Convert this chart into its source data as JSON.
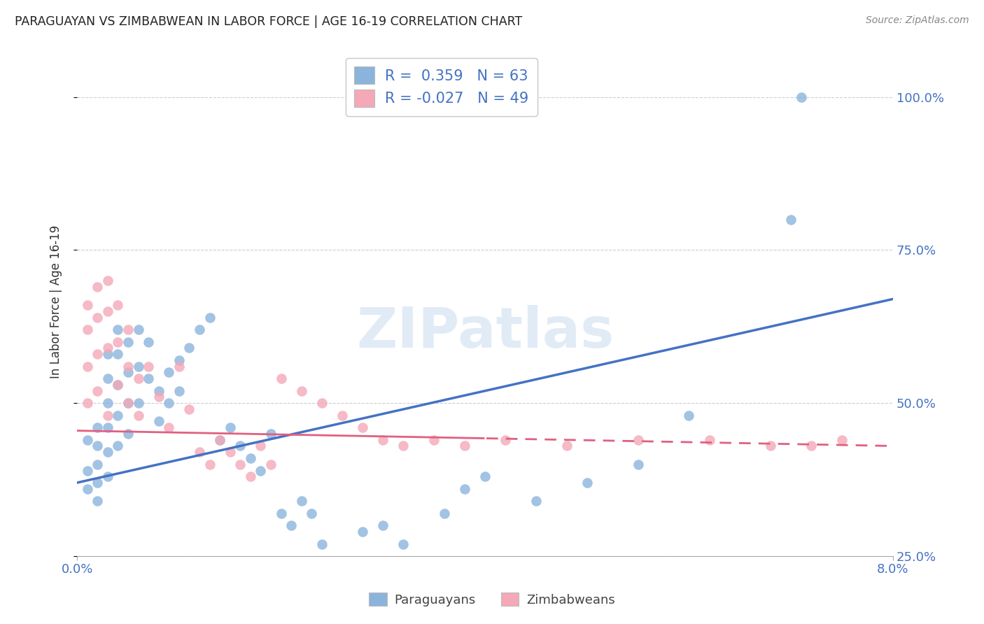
{
  "title": "PARAGUAYAN VS ZIMBABWEAN IN LABOR FORCE | AGE 16-19 CORRELATION CHART",
  "source": "Source: ZipAtlas.com",
  "ylabel": "In Labor Force | Age 16-19",
  "ytick_labels": [
    "25.0%",
    "50.0%",
    "75.0%",
    "100.0%"
  ],
  "ytick_values": [
    0.25,
    0.5,
    0.75,
    1.0
  ],
  "xtick_left": "0.0%",
  "xtick_right": "8.0%",
  "xlim": [
    0.0,
    0.08
  ],
  "ylim": [
    0.3,
    1.08
  ],
  "blue_R": 0.359,
  "blue_N": 63,
  "pink_R": -0.027,
  "pink_N": 49,
  "blue_color": "#8BB4DC",
  "pink_color": "#F4A8B8",
  "blue_line_color": "#4472C4",
  "pink_line_color": "#E06080",
  "legend_label_blue": "Paraguayans",
  "legend_label_pink": "Zimbabweans",
  "watermark": "ZIPatlas",
  "grid_color": "#CCCCCC",
  "right_tick_color": "#4472C4"
}
